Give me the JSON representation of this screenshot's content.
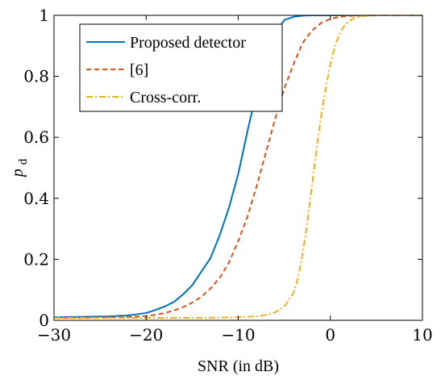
{
  "chart_data": {
    "type": "line",
    "xlabel": "SNR (in dB)",
    "ylabel_main": "p",
    "ylabel_sub": "d",
    "xlim": [
      -30,
      10
    ],
    "ylim": [
      0,
      1
    ],
    "xticks": [
      -30,
      -20,
      -10,
      0,
      10
    ],
    "xtick_labels": [
      "−30",
      "−20",
      "−10",
      "0",
      "10"
    ],
    "yticks": [
      0,
      0.2,
      0.4,
      0.6,
      0.8,
      1
    ],
    "ytick_labels": [
      "0",
      "0.2",
      "0.4",
      "0.6",
      "0.8",
      "1"
    ],
    "grid": false,
    "legend_position": "top-left",
    "series": [
      {
        "name": "Proposed detector",
        "color": "#0072bd",
        "dash": "solid",
        "x": [
          -30,
          -28,
          -26,
          -24,
          -22,
          -21,
          -20,
          -19,
          -18,
          -17,
          -16,
          -15,
          -14,
          -13,
          -12,
          -11,
          -10,
          -9,
          -8,
          -7,
          -6,
          -5,
          -4,
          -3,
          -2,
          -1,
          0,
          2,
          5,
          10
        ],
        "y": [
          0.01,
          0.011,
          0.012,
          0.013,
          0.016,
          0.02,
          0.024,
          0.034,
          0.045,
          0.06,
          0.085,
          0.115,
          0.16,
          0.205,
          0.28,
          0.37,
          0.48,
          0.62,
          0.75,
          0.87,
          0.94,
          0.985,
          0.995,
          0.999,
          1,
          1,
          1,
          1,
          1,
          1
        ]
      },
      {
        "name": "[6]",
        "color": "#d95319",
        "dash": "dashed",
        "x": [
          -30,
          -25,
          -22,
          -20,
          -19,
          -18,
          -17,
          -16,
          -15,
          -14,
          -13,
          -12,
          -11,
          -10,
          -9,
          -8,
          -7,
          -6,
          -5,
          -4,
          -3,
          -2,
          -1,
          0,
          1,
          2,
          3,
          5,
          7,
          10
        ],
        "y": [
          0.008,
          0.009,
          0.011,
          0.014,
          0.018,
          0.024,
          0.032,
          0.043,
          0.058,
          0.077,
          0.105,
          0.14,
          0.19,
          0.26,
          0.34,
          0.44,
          0.55,
          0.66,
          0.76,
          0.84,
          0.91,
          0.95,
          0.975,
          0.988,
          0.995,
          0.998,
          0.999,
          1,
          1,
          1
        ]
      },
      {
        "name": "Cross-corr.",
        "color": "#edb120",
        "dash": "dashdot",
        "x": [
          -30,
          -20,
          -15,
          -12,
          -10,
          -8,
          -7,
          -6,
          -5,
          -4,
          -3.5,
          -3,
          -2.5,
          -2,
          -1.5,
          -1,
          -0.5,
          0,
          0.5,
          1,
          1.5,
          2,
          2.5,
          3,
          4,
          5,
          6,
          8,
          10
        ],
        "y": [
          0.008,
          0.008,
          0.008,
          0.009,
          0.01,
          0.013,
          0.018,
          0.026,
          0.045,
          0.09,
          0.14,
          0.22,
          0.32,
          0.44,
          0.56,
          0.67,
          0.76,
          0.84,
          0.9,
          0.94,
          0.965,
          0.98,
          0.99,
          0.995,
          0.999,
          1,
          1,
          1,
          1
        ]
      }
    ]
  }
}
